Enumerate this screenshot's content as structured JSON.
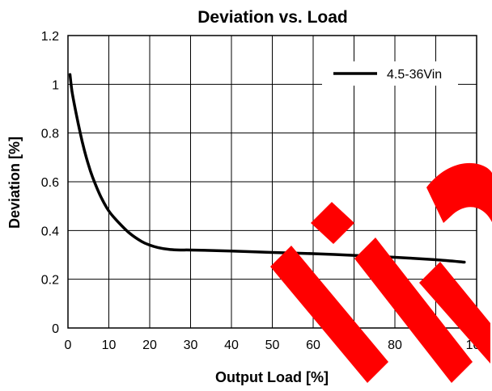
{
  "chart_data": {
    "type": "line",
    "title": "Deviation vs. Load",
    "xlabel": "Output Load [%]",
    "ylabel": "Deviation [%]",
    "xlim": [
      0,
      100
    ],
    "ylim": [
      0,
      1.2
    ],
    "xticks": [
      0,
      10,
      20,
      30,
      40,
      50,
      60,
      70,
      80,
      90,
      100
    ],
    "yticks": [
      0,
      0.2,
      0.4,
      0.6,
      0.8,
      1,
      1.2
    ],
    "xtick_labels": [
      "0",
      "10",
      "20",
      "30",
      "40",
      "50",
      "60",
      "70",
      "80",
      "90",
      "100"
    ],
    "ytick_labels": [
      "0",
      "0.2",
      "0.4",
      "0.6",
      "0.8",
      "1",
      "1.2"
    ],
    "grid": true,
    "legend_position": "top-right",
    "series": [
      {
        "name": "4.5-36Vin",
        "color": "#000000",
        "x": [
          0.5,
          1,
          2,
          3,
          4,
          5,
          6,
          8,
          10,
          12,
          15,
          18,
          20,
          22,
          25,
          28,
          30,
          40,
          50,
          60,
          70,
          80,
          90,
          97
        ],
        "y": [
          1.04,
          0.97,
          0.88,
          0.8,
          0.73,
          0.67,
          0.62,
          0.54,
          0.48,
          0.44,
          0.39,
          0.355,
          0.34,
          0.33,
          0.322,
          0.32,
          0.32,
          0.316,
          0.31,
          0.305,
          0.298,
          0.29,
          0.28,
          0.27
        ]
      }
    ]
  },
  "watermark": {
    "color": "#ff0000"
  }
}
